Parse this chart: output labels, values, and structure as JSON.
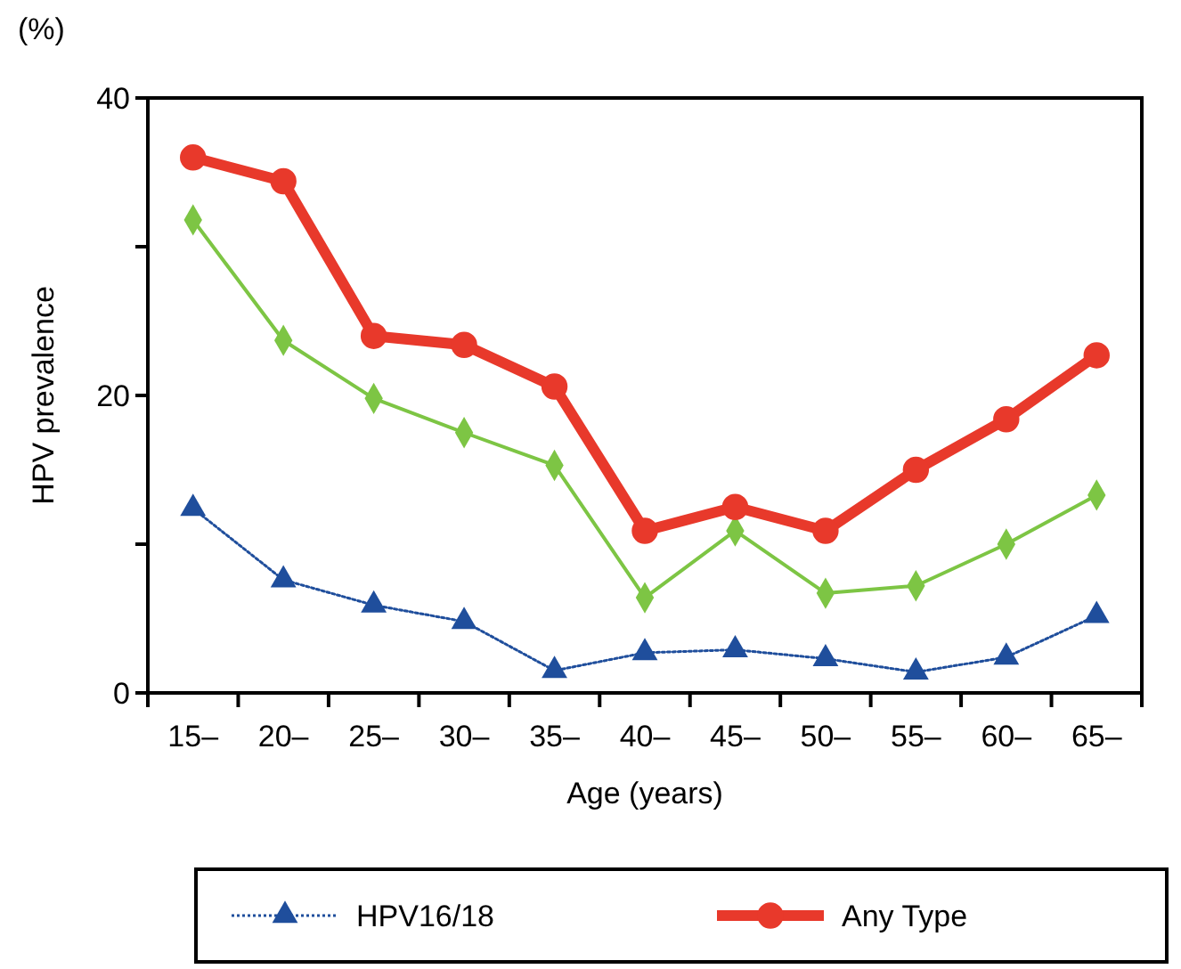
{
  "chart_data": {
    "type": "line",
    "xlabel": "Age (years)",
    "ylabel": "HPV prevalence",
    "annotations": [
      "(%)"
    ],
    "categories": [
      "15–",
      "20–",
      "25–",
      "30–",
      "35–",
      "40–",
      "45–",
      "50–",
      "55–",
      "60–",
      "65–"
    ],
    "ylim": [
      0,
      40
    ],
    "yticks": [
      0,
      {
        "value": 10,
        "label": null
      },
      20,
      {
        "value": 30,
        "label": null
      },
      40
    ],
    "grid": false,
    "legend": "bottom",
    "series": [
      {
        "name": "HPV16/18",
        "color": "#1f4e9c",
        "marker": "triangle",
        "line_style": "dotted",
        "values": [
          12.4,
          7.6,
          5.9,
          4.8,
          1.5,
          2.7,
          2.9,
          2.3,
          1.4,
          2.4,
          5.2
        ]
      },
      {
        "color": "#7dc544",
        "marker": "diamond",
        "line_style": "solid",
        "values": [
          31.8,
          23.7,
          19.8,
          17.5,
          15.3,
          6.4,
          10.9,
          6.7,
          7.2,
          10.0,
          13.3
        ]
      },
      {
        "name": "Any Type",
        "color": "#e8392b",
        "marker": "circle",
        "line_style": "solid",
        "values": [
          36.0,
          34.4,
          24.0,
          23.4,
          20.6,
          10.9,
          12.5,
          10.9,
          15.0,
          18.4,
          22.7
        ]
      }
    ]
  }
}
